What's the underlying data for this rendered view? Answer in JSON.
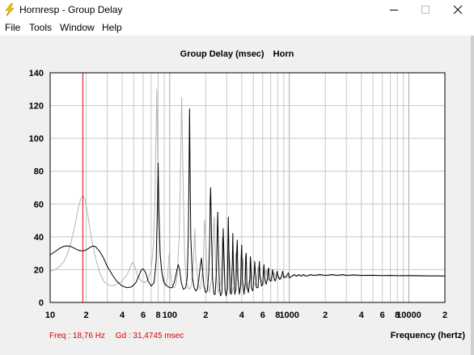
{
  "window": {
    "title": "Hornresp - Group Delay",
    "icon": "lightning-bolt-icon"
  },
  "menu": [
    "File",
    "Tools",
    "Window",
    "Help"
  ],
  "chart_title": {
    "main": "Group Delay (msec)",
    "sub": "Horn"
  },
  "status": {
    "freq": "Freq : 18,76 Hz",
    "gd": "Gd : 31,4745 msec"
  },
  "colors": {
    "primary_trace": "#000000",
    "secondary_trace": "#b4b4b4",
    "cursor": "#e00000",
    "grid": "#c8c8c8"
  },
  "chart_data": {
    "type": "line",
    "title": "Group Delay (msec)",
    "subtitle": "Horn",
    "xlabel": "Frequency (hertz)",
    "ylabel": "",
    "xscale": "log",
    "xlim": [
      10,
      20000
    ],
    "ylim": [
      0,
      140
    ],
    "grid": true,
    "x_tick_labels": [
      {
        "value": 10,
        "label": "10"
      },
      {
        "value": 20,
        "label": "2"
      },
      {
        "value": 40,
        "label": "4"
      },
      {
        "value": 60,
        "label": "6"
      },
      {
        "value": 80,
        "label": "8"
      },
      {
        "value": 100,
        "label": "100"
      },
      {
        "value": 200,
        "label": "2"
      },
      {
        "value": 400,
        "label": "4"
      },
      {
        "value": 600,
        "label": "6"
      },
      {
        "value": 800,
        "label": "8"
      },
      {
        "value": 1000,
        "label": "1000"
      },
      {
        "value": 2000,
        "label": "2"
      },
      {
        "value": 4000,
        "label": "4"
      },
      {
        "value": 6000,
        "label": "6"
      },
      {
        "value": 8000,
        "label": "8"
      },
      {
        "value": 10000,
        "label": "10000"
      },
      {
        "value": 20000,
        "label": "2"
      }
    ],
    "y_ticks": [
      0,
      20,
      40,
      60,
      80,
      100,
      120,
      140
    ],
    "cursor": {
      "freq": 18.76,
      "gd": 31.4745
    },
    "series": [
      {
        "color": "#000000",
        "points": [
          [
            10,
            29
          ],
          [
            11,
            31
          ],
          [
            12,
            33
          ],
          [
            13,
            34.2
          ],
          [
            14,
            34.5
          ],
          [
            15,
            34
          ],
          [
            16,
            33
          ],
          [
            17,
            32
          ],
          [
            18,
            31.5
          ],
          [
            19,
            31.5
          ],
          [
            20,
            32
          ],
          [
            21,
            33
          ],
          [
            22,
            34
          ],
          [
            23,
            34.3
          ],
          [
            24,
            34
          ],
          [
            26,
            31
          ],
          [
            28,
            27
          ],
          [
            30,
            22
          ],
          [
            33,
            17
          ],
          [
            36,
            13
          ],
          [
            40,
            10
          ],
          [
            44,
            9
          ],
          [
            48,
            9.5
          ],
          [
            52,
            12
          ],
          [
            55,
            16
          ],
          [
            58,
            20
          ],
          [
            60,
            20.5
          ],
          [
            63,
            18
          ],
          [
            66,
            13
          ],
          [
            70,
            10
          ],
          [
            74,
            12
          ],
          [
            77,
            25
          ],
          [
            79,
            60
          ],
          [
            80,
            85
          ],
          [
            81,
            60
          ],
          [
            83,
            30
          ],
          [
            86,
            18
          ],
          [
            90,
            12
          ],
          [
            95,
            10
          ],
          [
            100,
            9
          ],
          [
            105,
            9
          ],
          [
            110,
            13
          ],
          [
            115,
            20
          ],
          [
            118,
            23
          ],
          [
            121,
            20
          ],
          [
            125,
            12
          ],
          [
            130,
            8
          ],
          [
            136,
            9
          ],
          [
            140,
            15
          ],
          [
            143,
            40
          ],
          [
            145,
            80
          ],
          [
            146.5,
            118
          ],
          [
            148,
            80
          ],
          [
            150,
            40
          ],
          [
            155,
            15
          ],
          [
            160,
            9
          ],
          [
            165,
            7
          ],
          [
            170,
            8
          ],
          [
            175,
            14
          ],
          [
            180,
            22
          ],
          [
            184,
            27
          ],
          [
            188,
            20
          ],
          [
            193,
            10
          ],
          [
            200,
            6
          ],
          [
            206,
            7
          ],
          [
            212,
            18
          ],
          [
            216,
            40
          ],
          [
            218,
            62
          ],
          [
            220,
            70
          ],
          [
            223,
            45
          ],
          [
            228,
            15
          ],
          [
            234,
            5
          ],
          [
            240,
            5
          ],
          [
            246,
            20
          ],
          [
            250,
            45
          ],
          [
            252,
            55
          ],
          [
            255,
            35
          ],
          [
            260,
            10
          ],
          [
            266,
            4
          ],
          [
            273,
            6
          ],
          [
            278,
            30
          ],
          [
            280,
            45
          ],
          [
            284,
            30
          ],
          [
            290,
            8
          ],
          [
            296,
            4
          ],
          [
            303,
            8
          ],
          [
            306,
            30
          ],
          [
            309,
            52
          ],
          [
            313,
            30
          ],
          [
            320,
            6
          ],
          [
            327,
            5
          ],
          [
            334,
            25
          ],
          [
            337,
            42
          ],
          [
            341,
            20
          ],
          [
            350,
            5
          ],
          [
            358,
            8
          ],
          [
            363,
            30
          ],
          [
            367,
            38
          ],
          [
            372,
            15
          ],
          [
            382,
            5
          ],
          [
            392,
            10
          ],
          [
            396,
            28
          ],
          [
            400,
            35
          ],
          [
            405,
            14
          ],
          [
            418,
            5
          ],
          [
            428,
            12
          ],
          [
            432,
            28
          ],
          [
            436,
            30
          ],
          [
            442,
            10
          ],
          [
            455,
            6
          ],
          [
            468,
            14
          ],
          [
            472,
            28
          ],
          [
            476,
            25
          ],
          [
            482,
            9
          ],
          [
            496,
            7
          ],
          [
            508,
            17
          ],
          [
            514,
            25
          ],
          [
            520,
            18
          ],
          [
            532,
            9
          ],
          [
            548,
            9
          ],
          [
            556,
            18
          ],
          [
            562,
            25
          ],
          [
            568,
            17
          ],
          [
            586,
            10
          ],
          [
            598,
            11
          ],
          [
            608,
            19
          ],
          [
            614,
            23
          ],
          [
            620,
            16
          ],
          [
            640,
            11
          ],
          [
            655,
            14
          ],
          [
            665,
            20
          ],
          [
            672,
            21
          ],
          [
            680,
            14
          ],
          [
            700,
            13
          ],
          [
            715,
            16
          ],
          [
            725,
            20
          ],
          [
            735,
            17
          ],
          [
            760,
            13
          ],
          [
            780,
            15
          ],
          [
            790,
            19
          ],
          [
            800,
            17
          ],
          [
            830,
            14
          ],
          [
            860,
            16
          ],
          [
            880,
            19
          ],
          [
            900,
            15
          ],
          [
            950,
            16
          ],
          [
            980,
            18
          ],
          [
            1000,
            15
          ],
          [
            1050,
            16
          ],
          [
            1100,
            17
          ],
          [
            1150,
            16
          ],
          [
            1200,
            17
          ],
          [
            1250,
            16
          ],
          [
            1300,
            17
          ],
          [
            1400,
            16
          ],
          [
            1500,
            17
          ],
          [
            1600,
            16.5
          ],
          [
            1800,
            17
          ],
          [
            2000,
            16.5
          ],
          [
            2300,
            17
          ],
          [
            2500,
            16.5
          ],
          [
            2800,
            17
          ],
          [
            3000,
            16.5
          ],
          [
            3500,
            16.8
          ],
          [
            4000,
            16.5
          ],
          [
            5000,
            16.6
          ],
          [
            6000,
            16.4
          ],
          [
            7000,
            16.5
          ],
          [
            8000,
            16.3
          ],
          [
            10000,
            16.4
          ],
          [
            12000,
            16.3
          ],
          [
            15000,
            16.2
          ],
          [
            18000,
            16.2
          ],
          [
            20000,
            16.1
          ]
        ]
      },
      {
        "color": "#b4b4b4",
        "points": [
          [
            10,
            19
          ],
          [
            11,
            20
          ],
          [
            12,
            22
          ],
          [
            13,
            25
          ],
          [
            14,
            30
          ],
          [
            15,
            37
          ],
          [
            16,
            46
          ],
          [
            17,
            56
          ],
          [
            18,
            63
          ],
          [
            18.76,
            65
          ],
          [
            19.5,
            63
          ],
          [
            20.5,
            55
          ],
          [
            22,
            40
          ],
          [
            24,
            27
          ],
          [
            26,
            18
          ],
          [
            28,
            13
          ],
          [
            30,
            11
          ],
          [
            33,
            10
          ],
          [
            36,
            11
          ],
          [
            40,
            13
          ],
          [
            44,
            17
          ],
          [
            47,
            22
          ],
          [
            49,
            24.5
          ],
          [
            51,
            22
          ],
          [
            54,
            16
          ],
          [
            58,
            13
          ],
          [
            62,
            12
          ],
          [
            66,
            14
          ],
          [
            70,
            20
          ],
          [
            73,
            35
          ],
          [
            75,
            60
          ],
          [
            77,
            105
          ],
          [
            78,
            130
          ],
          [
            79,
            100
          ],
          [
            81,
            55
          ],
          [
            84,
            25
          ],
          [
            88,
            13
          ],
          [
            92,
            10
          ],
          [
            96,
            15
          ],
          [
            99,
            30
          ],
          [
            101,
            20
          ],
          [
            105,
            10
          ],
          [
            110,
            9
          ],
          [
            115,
            14
          ],
          [
            120,
            40
          ],
          [
            123,
            80
          ],
          [
            126,
            125
          ],
          [
            129,
            80
          ],
          [
            133,
            30
          ],
          [
            138,
            12
          ],
          [
            145,
            8
          ],
          [
            152,
            10
          ],
          [
            158,
            25
          ],
          [
            162,
            45
          ],
          [
            165,
            28
          ],
          [
            172,
            12
          ],
          [
            180,
            8
          ],
          [
            190,
            20
          ],
          [
            196,
            50
          ],
          [
            200,
            40
          ],
          [
            205,
            15
          ],
          [
            215,
            6
          ],
          [
            225,
            15
          ],
          [
            232,
            45
          ],
          [
            236,
            52
          ],
          [
            242,
            20
          ],
          [
            255,
            6
          ],
          [
            268,
            12
          ],
          [
            275,
            40
          ],
          [
            280,
            32
          ],
          [
            290,
            7
          ],
          [
            305,
            8
          ],
          [
            312,
            32
          ],
          [
            318,
            25
          ],
          [
            330,
            6
          ],
          [
            348,
            10
          ],
          [
            356,
            30
          ],
          [
            362,
            22
          ],
          [
            380,
            7
          ],
          [
            400,
            12
          ],
          [
            410,
            27
          ],
          [
            418,
            18
          ],
          [
            440,
            8
          ],
          [
            465,
            14
          ],
          [
            476,
            24
          ],
          [
            486,
            16
          ],
          [
            520,
            10
          ],
          [
            540,
            17
          ],
          [
            550,
            22
          ],
          [
            562,
            15
          ],
          [
            610,
            11
          ],
          [
            630,
            18
          ],
          [
            640,
            20
          ],
          [
            660,
            14
          ],
          [
            720,
            13
          ],
          [
            750,
            18
          ],
          [
            770,
            16
          ],
          [
            850,
            14
          ],
          [
            900,
            17
          ],
          [
            950,
            15
          ],
          [
            1050,
            16
          ],
          [
            1150,
            16.5
          ],
          [
            1300,
            16
          ],
          [
            1500,
            16.5
          ],
          [
            1800,
            16.3
          ],
          [
            2200,
            16.5
          ],
          [
            2800,
            16.3
          ],
          [
            3500,
            16.4
          ],
          [
            5000,
            16.3
          ],
          [
            7000,
            16.2
          ],
          [
            10000,
            16.1
          ],
          [
            15000,
            16
          ],
          [
            20000,
            16
          ]
        ]
      }
    ]
  }
}
